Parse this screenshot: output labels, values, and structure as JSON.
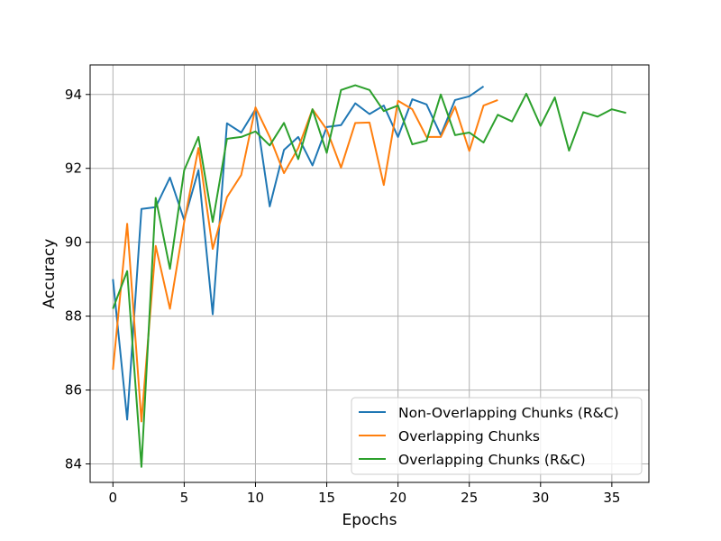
{
  "chart_data": {
    "type": "line",
    "title": "",
    "xlabel": "Epochs",
    "ylabel": "Accuracy",
    "xlim": [
      -1.6,
      37.6
    ],
    "ylim": [
      83.5,
      94.8
    ],
    "xticks": [
      0,
      5,
      10,
      15,
      20,
      25,
      30,
      35
    ],
    "yticks": [
      84,
      86,
      88,
      90,
      92,
      94
    ],
    "grid": true,
    "legend_position": "lower-right",
    "series": [
      {
        "name": "Non-Overlapping Chunks (R&C)",
        "color": "#1f77b4",
        "x": [
          0,
          1,
          2,
          3,
          4,
          5,
          6,
          7,
          8,
          9,
          10,
          11,
          12,
          13,
          14,
          15,
          16,
          17,
          18,
          19,
          20,
          21,
          22,
          23,
          24,
          25,
          26
        ],
        "y": [
          89.0,
          85.2,
          90.9,
          90.95,
          91.75,
          90.6,
          91.95,
          88.05,
          93.22,
          92.97,
          93.6,
          90.97,
          92.5,
          92.85,
          92.08,
          93.12,
          93.17,
          93.76,
          93.47,
          93.7,
          92.85,
          93.87,
          93.73,
          92.9,
          93.85,
          93.95,
          94.22
        ]
      },
      {
        "name": "Overlapping Chunks",
        "color": "#ff7f0e",
        "x": [
          0,
          1,
          2,
          3,
          4,
          5,
          6,
          7,
          8,
          9,
          10,
          11,
          12,
          13,
          14,
          15,
          16,
          17,
          18,
          19,
          20,
          21,
          22,
          23,
          24,
          25,
          26,
          27
        ],
        "y": [
          86.55,
          90.5,
          85.15,
          89.9,
          88.2,
          90.55,
          92.55,
          89.82,
          91.22,
          91.82,
          93.65,
          92.85,
          91.87,
          92.55,
          93.6,
          93.05,
          92.02,
          93.23,
          93.24,
          91.55,
          93.83,
          93.6,
          92.85,
          92.85,
          93.67,
          92.47,
          93.7,
          93.85
        ]
      },
      {
        "name": "Overlapping Chunks (R&C)",
        "color": "#2ca02c",
        "x": [
          0,
          1,
          2,
          3,
          4,
          5,
          6,
          7,
          8,
          9,
          10,
          11,
          12,
          13,
          14,
          15,
          16,
          17,
          18,
          19,
          20,
          21,
          22,
          23,
          24,
          25,
          26,
          27,
          28,
          29,
          30,
          31,
          32,
          33,
          34,
          35,
          36
        ],
        "y": [
          88.2,
          89.22,
          83.92,
          91.2,
          89.28,
          91.95,
          92.85,
          90.55,
          92.8,
          92.85,
          93.0,
          92.62,
          93.23,
          92.25,
          93.6,
          92.42,
          94.12,
          94.25,
          94.12,
          93.55,
          93.7,
          92.65,
          92.75,
          94.0,
          92.9,
          92.97,
          92.7,
          93.45,
          93.27,
          94.02,
          93.15,
          93.92,
          92.48,
          93.52,
          93.4,
          93.6,
          93.5
        ]
      }
    ]
  }
}
